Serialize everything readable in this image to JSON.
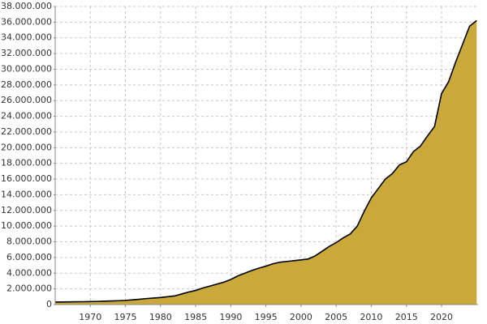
{
  "chart_data": {
    "type": "area",
    "x": [
      1965,
      1966,
      1967,
      1968,
      1969,
      1970,
      1971,
      1972,
      1973,
      1974,
      1975,
      1976,
      1977,
      1978,
      1979,
      1980,
      1981,
      1982,
      1983,
      1984,
      1985,
      1986,
      1987,
      1988,
      1989,
      1990,
      1991,
      1992,
      1993,
      1994,
      1995,
      1996,
      1997,
      1998,
      1999,
      2000,
      2001,
      2002,
      2003,
      2004,
      2005,
      2006,
      2007,
      2008,
      2009,
      2010,
      2011,
      2012,
      2013,
      2014,
      2015,
      2016,
      2017,
      2018,
      2019,
      2020,
      2021,
      2022,
      2023,
      2024,
      2025
    ],
    "values": [
      320000,
      330000,
      340000,
      350000,
      360000,
      380000,
      400000,
      430000,
      460000,
      490000,
      530000,
      600000,
      680000,
      760000,
      830000,
      900000,
      1000000,
      1100000,
      1350000,
      1600000,
      1800000,
      2100000,
      2350000,
      2600000,
      2850000,
      3200000,
      3650000,
      4000000,
      4350000,
      4650000,
      4900000,
      5200000,
      5400000,
      5500000,
      5600000,
      5700000,
      5800000,
      6200000,
      6800000,
      7400000,
      7900000,
      8500000,
      9000000,
      10000000,
      11900000,
      13600000,
      14800000,
      16000000,
      16700000,
      17800000,
      18200000,
      19500000,
      20200000,
      21500000,
      22700000,
      26900000,
      28400000,
      30900000,
      33200000,
      35500000,
      36200000
    ],
    "color": "#c8a93a",
    "line_color": "#000000",
    "xlim": [
      1965,
      2025.2
    ],
    "xticks": [
      1970,
      1975,
      1980,
      1985,
      1990,
      1995,
      2000,
      2005,
      2010,
      2015,
      2020
    ],
    "ylim": [
      0,
      38000000
    ],
    "yticks": [
      0,
      {
        "value": 2000000,
        "label": "2.000.000"
      },
      {
        "value": 4000000,
        "label": "4.000.000"
      },
      {
        "value": 6000000,
        "label": "6.000.000"
      },
      {
        "value": 8000000,
        "label": "8.000.000"
      },
      {
        "value": 10000000,
        "label": "10.000.000"
      },
      {
        "value": 12000000,
        "label": "12.000.000"
      },
      {
        "value": 14000000,
        "label": "14.000.000"
      },
      {
        "value": 16000000,
        "label": "16.000.000"
      },
      {
        "value": 18000000,
        "label": "18.000.000"
      },
      {
        "value": 20000000,
        "label": "20.000.000"
      },
      {
        "value": 22000000,
        "label": "22.000.000"
      },
      {
        "value": 24000000,
        "label": "24.000.000"
      },
      {
        "value": 26000000,
        "label": "26.000.000"
      },
      {
        "value": 28000000,
        "label": "28.000.000"
      },
      {
        "value": 30000000,
        "label": "30.000.000"
      },
      {
        "value": 32000000,
        "label": "32.000.000"
      },
      {
        "value": 34000000,
        "label": "34.000.000"
      },
      {
        "value": 36000000,
        "label": "36.000.000"
      },
      {
        "value": 38000000,
        "label": "38.000.000"
      }
    ],
    "grid": true
  }
}
